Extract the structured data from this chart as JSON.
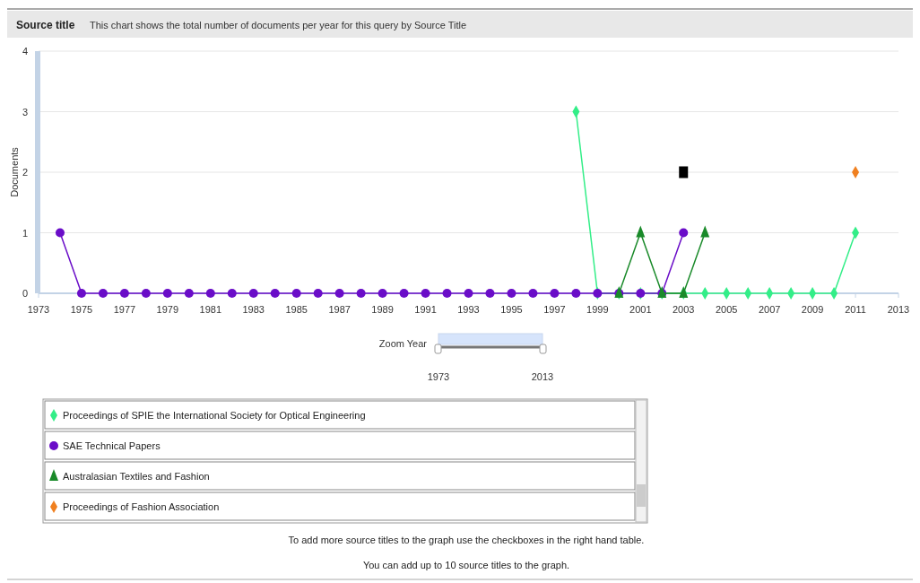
{
  "chart_data": {
    "type": "line",
    "title": "Source title",
    "subtitle": "This chart shows the total number of documents per year for this query by Source Title",
    "ylabel": "Documents",
    "xlim": [
      1973,
      2013
    ],
    "xticks": [
      1973,
      1975,
      1977,
      1979,
      1981,
      1983,
      1985,
      1987,
      1989,
      1991,
      1993,
      1995,
      1997,
      1999,
      2001,
      2003,
      2005,
      2007,
      2009,
      2011,
      2013
    ],
    "ylim": [
      0,
      4
    ],
    "yticks": [
      0,
      1,
      2,
      3,
      4
    ],
    "grid": "y",
    "legend": "bottom",
    "line_style": "solid",
    "series": [
      {
        "name": "Proceedings of SPIE the International Society for Optical Engineering",
        "color": "#33ee88",
        "marker": "diamond",
        "x": [
          1998,
          1999,
          2000,
          2001,
          2002,
          2003,
          2004,
          2005,
          2006,
          2007,
          2008,
          2009,
          2010,
          2011
        ],
        "values": [
          3,
          0,
          0,
          0,
          0,
          0,
          0,
          0,
          0,
          0,
          0,
          0,
          0,
          1
        ]
      },
      {
        "name": "SAE Technical Papers",
        "color": "#6a0dc8",
        "marker": "circle",
        "x": [
          1974,
          1975,
          1976,
          1977,
          1978,
          1979,
          1980,
          1981,
          1982,
          1983,
          1984,
          1985,
          1986,
          1987,
          1988,
          1989,
          1990,
          1991,
          1992,
          1993,
          1994,
          1995,
          1996,
          1997,
          1998,
          1999,
          2000,
          2001,
          2002,
          2003
        ],
        "values": [
          1,
          0,
          0,
          0,
          0,
          0,
          0,
          0,
          0,
          0,
          0,
          0,
          0,
          0,
          0,
          0,
          0,
          0,
          0,
          0,
          0,
          0,
          0,
          0,
          0,
          0,
          0,
          0,
          0,
          1
        ]
      },
      {
        "name": "Australasian Textiles and Fashion",
        "color": "#1a8a2a",
        "marker": "triangle",
        "x": [
          2000,
          2001,
          2002,
          2003,
          2004
        ],
        "values": [
          0,
          1,
          0,
          0,
          1
        ]
      },
      {
        "name": "Proceedings of Fashion Association",
        "color": "#f08020",
        "marker": "diamond",
        "x": [
          2011
        ],
        "values": [
          2
        ]
      },
      {
        "type": "scatter",
        "color": "#000000",
        "marker": "square",
        "x": [
          2003
        ],
        "values": [
          2
        ]
      }
    ],
    "annotations": [
      "Zoom Year",
      "1973",
      "2013",
      "To add more source titles to the graph use the checkboxes in the right hand table.",
      "You can add up to 10 source titles to the graph."
    ]
  }
}
